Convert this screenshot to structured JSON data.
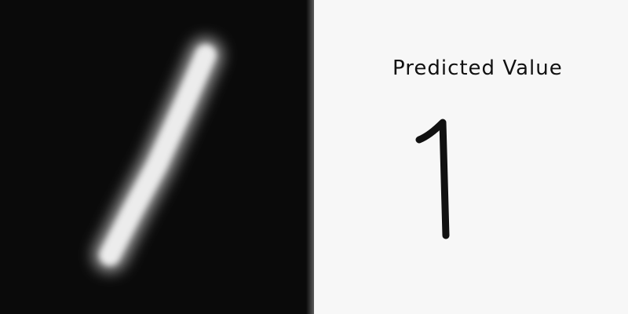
{
  "input_image": {
    "background_color": "#0a0a0a",
    "stroke_color": "#f0f0f0",
    "content": "handwritten-digit-one"
  },
  "output": {
    "label": "Predicted Value",
    "value": "1",
    "text_color": "#111111",
    "background_color": "#f7f7f7"
  }
}
